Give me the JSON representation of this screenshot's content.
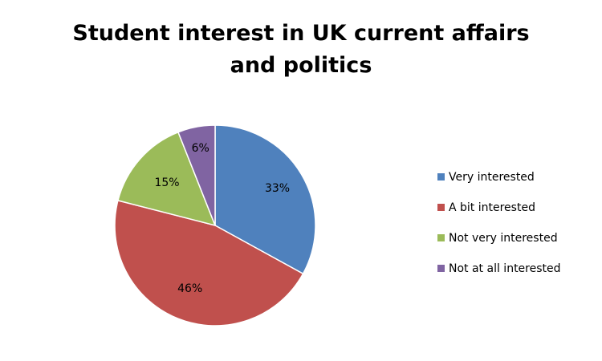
{
  "chart_data": {
    "type": "pie",
    "title": "Student interest in UK current affairs and politics",
    "title_lines": [
      "Student interest in UK current affairs",
      "and politics"
    ],
    "categories": [
      "Very interested",
      "A bit interested",
      "Not very interested",
      "Not at all interested"
    ],
    "values": [
      33,
      46,
      15,
      6
    ],
    "data_labels": [
      "33%",
      "46%",
      "15%",
      "6%"
    ],
    "colors": [
      "#4f81bd",
      "#c0504d",
      "#9bbb59",
      "#8064a2"
    ],
    "legend": "right",
    "start": "12 o'clock, clockwise"
  }
}
